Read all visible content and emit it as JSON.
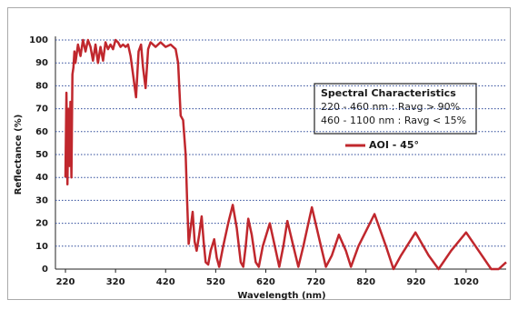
{
  "chart_data": {
    "type": "line",
    "x_label": "Wavelength (nm)",
    "y_label": "Reflectance (%)",
    "annotation": [
      "Spectral Characteristics",
      "220 - 460 nm : Ravg > 90%",
      "460 - 1100 nm : Ravg < 15%"
    ],
    "xlim": [
      200,
      1100
    ],
    "ylim": [
      0,
      100
    ],
    "xticks": [
      220,
      320,
      420,
      520,
      620,
      720,
      820,
      920,
      1020
    ],
    "yticks": [
      0,
      10,
      20,
      30,
      40,
      50,
      60,
      70,
      80,
      90,
      100
    ],
    "grid": true,
    "grid_color": "#2e4a9a",
    "x": [
      220,
      222,
      224,
      226,
      228,
      230,
      232,
      234,
      236,
      238,
      240,
      245,
      250,
      255,
      260,
      265,
      270,
      275,
      280,
      285,
      290,
      295,
      300,
      305,
      310,
      315,
      320,
      325,
      330,
      335,
      340,
      345,
      350,
      355,
      361,
      366,
      371,
      375,
      380,
      385,
      390,
      400,
      410,
      420,
      430,
      440,
      445,
      450,
      455,
      460,
      463,
      466,
      470,
      474,
      478,
      482,
      487,
      492,
      496,
      500,
      505,
      510,
      517,
      522,
      527,
      535,
      545,
      554,
      562,
      570,
      575,
      580,
      585,
      592,
      600,
      606,
      614,
      628,
      640,
      647,
      655,
      663,
      675,
      685,
      695,
      712,
      728,
      740,
      752,
      766,
      780,
      790,
      805,
      837,
      860,
      875,
      890,
      919,
      945,
      965,
      990,
      1020,
      1045,
      1070,
      1085,
      1100
    ],
    "series": [
      {
        "name": "AOI - 45°",
        "color": "#c0272d",
        "values": [
          40,
          77,
          37,
          70,
          45,
          73,
          40,
          85,
          88,
          95,
          90,
          98,
          93,
          100,
          95,
          100,
          97,
          91,
          98,
          90,
          97,
          91,
          99,
          96,
          98,
          96,
          100,
          99,
          97,
          98,
          97,
          98,
          93,
          85,
          75,
          95,
          98,
          88,
          79,
          96,
          99,
          97,
          99,
          97,
          98,
          96,
          90,
          67,
          65,
          50,
          30,
          11,
          18,
          25,
          12,
          8,
          15,
          23,
          12,
          3,
          2,
          8,
          13,
          5,
          1,
          10,
          20,
          28,
          18,
          3,
          1,
          10,
          22,
          15,
          3,
          1,
          10,
          20,
          8,
          1,
          10,
          21,
          10,
          1,
          10,
          27,
          12,
          1,
          6,
          15,
          8,
          1,
          10,
          24,
          10,
          0,
          6,
          16,
          6,
          0,
          8,
          16,
          8,
          0,
          0,
          3
        ]
      }
    ]
  }
}
